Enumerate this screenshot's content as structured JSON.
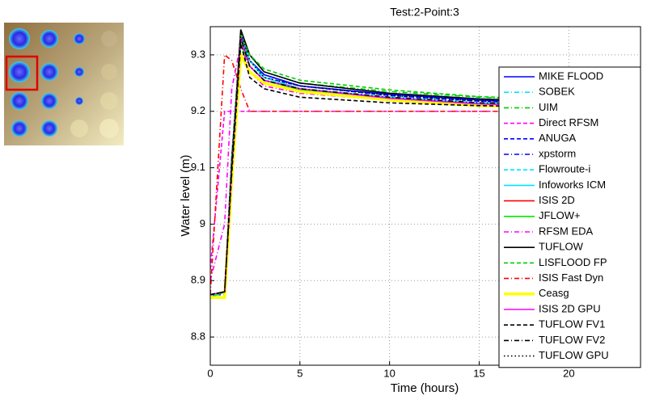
{
  "chart_data": {
    "type": "line",
    "title": "Test:2-Point:3",
    "x_label": "Time (hours)",
    "y_label": "Water level (m)",
    "x": [
      0,
      0.8,
      1.2,
      1.7,
      2.2,
      3,
      5,
      10,
      15,
      24
    ],
    "xlim": [
      0,
      24
    ],
    "xticks": [
      0,
      5,
      10,
      15,
      20
    ],
    "ylim": [
      8.75,
      9.35
    ],
    "yticks": [
      8.8,
      8.9,
      9,
      9.1,
      9.2,
      9.3
    ],
    "grid": true,
    "legend": "right",
    "series": [
      {
        "name": "MIKE FLOOD",
        "color": "#0000ff",
        "style": "solid",
        "values": [
          8.875,
          8.88,
          9.12,
          9.33,
          9.29,
          9.265,
          9.245,
          9.23,
          9.22,
          9.21
        ]
      },
      {
        "name": "SOBEK",
        "color": "#00e5ff",
        "style": "dashdot",
        "values": [
          8.875,
          8.88,
          9.1,
          9.335,
          9.3,
          9.27,
          9.25,
          9.232,
          9.222,
          9.212
        ]
      },
      {
        "name": "UIM",
        "color": "#00cc00",
        "style": "dashdot",
        "values": [
          8.87,
          8.88,
          9.1,
          9.33,
          9.3,
          9.27,
          9.25,
          9.235,
          9.225,
          9.215
        ]
      },
      {
        "name": "Direct RFSM",
        "color": "#ff00ff",
        "style": "dash",
        "values": [
          8.92,
          9.2,
          9.2,
          9.2,
          9.2,
          9.2,
          9.2,
          9.2,
          9.2,
          9.2
        ]
      },
      {
        "name": "ANUGA",
        "color": "#0000ff",
        "style": "dash",
        "values": [
          8.875,
          8.875,
          9.1,
          9.33,
          9.29,
          9.26,
          9.245,
          9.228,
          9.218,
          9.21
        ]
      },
      {
        "name": "xpstorm",
        "color": "#0000ff",
        "style": "dashdot",
        "values": [
          8.875,
          8.88,
          9.11,
          9.335,
          9.29,
          9.265,
          9.245,
          9.23,
          9.22,
          9.212
        ]
      },
      {
        "name": "Flowroute-i",
        "color": "#00e5ff",
        "style": "dash",
        "values": [
          8.875,
          8.88,
          9.12,
          9.33,
          9.28,
          9.26,
          9.24,
          9.225,
          9.215,
          9.208
        ]
      },
      {
        "name": "Infoworks ICM",
        "color": "#00e5ff",
        "style": "solid",
        "values": [
          8.875,
          8.88,
          9.1,
          9.33,
          9.29,
          9.26,
          9.24,
          9.225,
          9.215,
          9.21
        ]
      },
      {
        "name": "ISIS 2D",
        "color": "#ff0000",
        "style": "solid",
        "values": [
          8.875,
          8.88,
          9.1,
          9.33,
          9.28,
          9.255,
          9.24,
          9.223,
          9.213,
          9.205
        ]
      },
      {
        "name": "JFLOW+",
        "color": "#00ee00",
        "style": "solid",
        "values": [
          8.87,
          8.88,
          9.1,
          9.32,
          9.28,
          9.255,
          9.238,
          9.222,
          9.212,
          9.205
        ]
      },
      {
        "name": "RFSM EDA",
        "color": "#ff00ff",
        "style": "dashdot",
        "values": [
          8.9,
          9.0,
          9.24,
          9.32,
          9.27,
          9.245,
          9.232,
          9.22,
          9.212,
          9.205
        ]
      },
      {
        "name": "TUFLOW",
        "color": "#000000",
        "style": "solid",
        "values": [
          8.875,
          8.88,
          9.11,
          9.345,
          9.3,
          9.27,
          9.25,
          9.232,
          9.222,
          9.212
        ]
      },
      {
        "name": "LISFLOOD FP",
        "color": "#00cc00",
        "style": "dash",
        "values": [
          8.875,
          8.88,
          9.12,
          9.335,
          9.3,
          9.275,
          9.255,
          9.238,
          9.226,
          9.216
        ]
      },
      {
        "name": "ISIS Fast Dyn",
        "color": "#ff0000",
        "style": "dashdot",
        "values": [
          8.875,
          9.3,
          9.29,
          9.24,
          9.2,
          9.2,
          9.2,
          9.2,
          9.2,
          9.2
        ]
      },
      {
        "name": "Ceasg",
        "color": "#ffff00",
        "style": "solid",
        "values": [
          8.87,
          8.87,
          9.08,
          9.3,
          9.27,
          9.25,
          9.235,
          9.22,
          9.21,
          9.205
        ]
      },
      {
        "name": "ISIS 2D GPU",
        "color": "#ff00ff",
        "style": "solid",
        "values": [
          8.875,
          8.88,
          9.1,
          9.33,
          9.28,
          9.255,
          9.24,
          9.223,
          9.213,
          9.205
        ]
      },
      {
        "name": "TUFLOW FV1",
        "color": "#000000",
        "style": "dash",
        "values": [
          8.875,
          8.88,
          9.09,
          9.32,
          9.26,
          9.24,
          9.225,
          9.215,
          9.21,
          9.205
        ]
      },
      {
        "name": "TUFLOW FV2",
        "color": "#000000",
        "style": "dashdot",
        "values": [
          8.875,
          8.88,
          9.1,
          9.33,
          9.28,
          9.255,
          9.24,
          9.225,
          9.215,
          9.21
        ]
      },
      {
        "name": "TUFLOW GPU",
        "color": "#000000",
        "style": "dot",
        "values": [
          8.875,
          8.88,
          9.11,
          9.34,
          9.29,
          9.26,
          9.245,
          9.228,
          9.218,
          9.21
        ]
      }
    ]
  }
}
